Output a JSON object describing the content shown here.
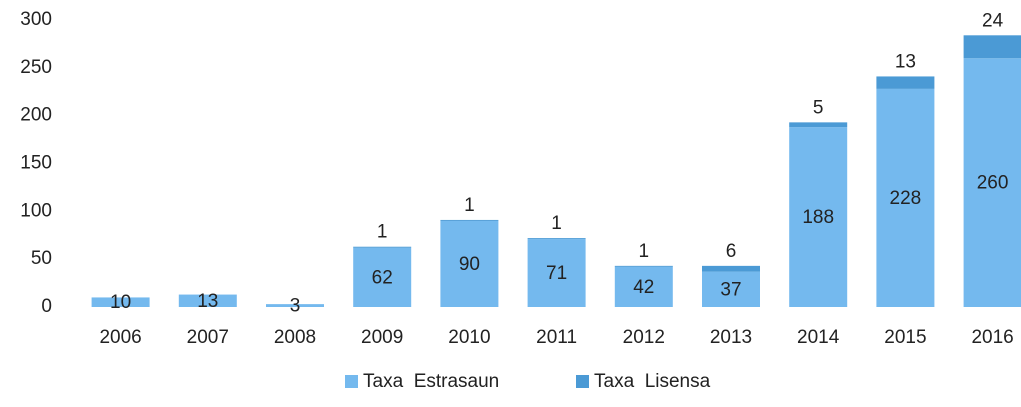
{
  "chart_data": {
    "type": "stacked_bar",
    "categories": [
      "2006",
      "2007",
      "2008",
      "2009",
      "2010",
      "2011",
      "2012",
      "2013",
      "2014",
      "2015",
      "2016"
    ],
    "series": [
      {
        "name": "Taxa  Estrasaun",
        "color": "#74b9ee",
        "values": [
          10,
          13,
          3,
          62,
          90,
          71,
          42,
          37,
          188,
          228,
          260
        ]
      },
      {
        "name": "Taxa  Lisensa",
        "color": "#4b9ad5",
        "values": [
          null,
          null,
          null,
          1,
          1,
          1,
          1,
          6,
          5,
          13,
          24
        ]
      }
    ],
    "ylim": [
      0,
      300
    ],
    "yticks": [
      0,
      50,
      100,
      150,
      200,
      250,
      300
    ],
    "grid": false,
    "legend": "bottom"
  }
}
